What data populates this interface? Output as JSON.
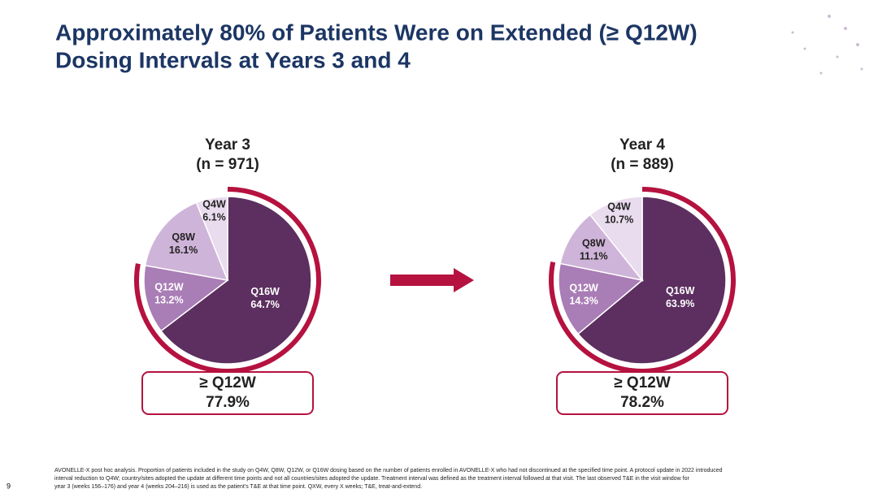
{
  "title": [
    "Approximately 80% of Patients Were on Extended (≥ Q12W)",
    "Dosing Intervals at Years 3 and 4"
  ],
  "chart_data": [
    {
      "type": "pie",
      "title": "Year 3",
      "subtitle": "(n = 971)",
      "categories": [
        "Q16W",
        "Q12W",
        "Q8W",
        "Q4W"
      ],
      "values": [
        64.7,
        13.2,
        16.1,
        6.1
      ],
      "value_labels": [
        "64.7%",
        "13.2%",
        "16.1%",
        "6.1%"
      ],
      "colors": [
        "#5c2f60",
        "#a97db6",
        "#cfb4d9",
        "#e9dcee"
      ],
      "summary_label": "≥ Q12W",
      "summary_value": 77.9,
      "summary_value_label": "77.9%",
      "summary_color": "#b5123f"
    },
    {
      "type": "pie",
      "title": "Year 4",
      "subtitle": "(n = 889)",
      "categories": [
        "Q16W",
        "Q12W",
        "Q8W",
        "Q4W"
      ],
      "values": [
        63.9,
        14.3,
        11.1,
        10.7
      ],
      "value_labels": [
        "63.9%",
        "14.3%",
        "11.1%",
        "10.7%"
      ],
      "colors": [
        "#5c2f60",
        "#a97db6",
        "#cfb4d9",
        "#e9dcee"
      ],
      "summary_label": "≥ Q12W",
      "summary_value": 78.2,
      "summary_value_label": "78.2%",
      "summary_color": "#b5123f"
    }
  ],
  "footnote": [
    "AVONELLE-X post hoc analysis. Proportion of patients included in the study on Q4W, Q8W, Q12W, or Q16W dosing based on the number of patients enrolled in AVONELLE-X who had not discontinued at the specified time point. A protocol update in 2022 introduced",
    "interval reduction to Q4W; country/sites adopted the update at different time points and not all countries/sites adopted the update. Treatment interval was defined as the treatment interval followed at that visit. The last observed T&E in the visit window for",
    "year 3 (weeks 156–176) and year 4 (weeks 204–216) is used as the patient's T&E at that time point. QXW, every X weeks; T&E, treat-and-extend."
  ],
  "page_number": "9"
}
